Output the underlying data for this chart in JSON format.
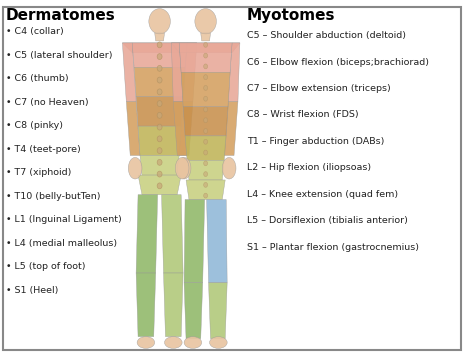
{
  "title_left": "Dermatomes",
  "title_right": "Myotomes",
  "background_color": "#ffffff",
  "border_color": "#888888",
  "title_fontsize": 11,
  "label_fontsize": 6.8,
  "myotome_fontsize": 6.8,
  "dermatomes": [
    "• C4 (collar)",
    "• C5 (lateral shoulder)",
    "• C6 (thumb)",
    "• C7 (no Heaven)",
    "• C8 (pinky)",
    "• T4 (teet-pore)",
    "• T7 (xiphoid)",
    "• T10 (belly-butTen)",
    "• L1 (Inguinal Ligament)",
    "• L4 (medial malleolus)",
    "• L5 (top of foot)",
    "• S1 (Heel)"
  ],
  "myotomes": [
    "C5 – Shoulder abduction (deltoid)",
    "C6 – Elbow flexion (biceps;brachiorad)",
    "C7 – Elbow extension (triceps)",
    "C8 – Wrist flexion (FDS)",
    "T1 – Finger abduction (DABs)",
    "L2 – Hip flexion (iliopsoas)",
    "L4 – Knee extension (quad fem)",
    "L5 – Dorsiflexion (tibialis anterior)",
    "S1 – Plantar flexion (gastrocnemius)"
  ],
  "fig_width": 4.74,
  "fig_height": 3.57,
  "dpi": 100,
  "skin_color": "#e8c4a0",
  "pink_color": "#e8a898",
  "orange_color": "#d4a060",
  "yellow_green_color": "#c8d080",
  "green_color": "#90b868",
  "blue_color": "#90b8d8",
  "light_green_color": "#b0c878"
}
